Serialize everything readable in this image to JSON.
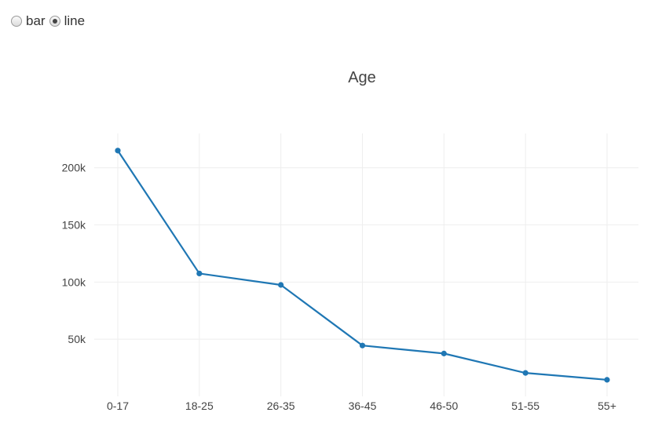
{
  "controls": {
    "options": [
      {
        "label": "bar",
        "checked": false
      },
      {
        "label": "line",
        "checked": true
      }
    ]
  },
  "chart_data": {
    "type": "line",
    "title": "Age",
    "categories": [
      "0-17",
      "18-25",
      "26-35",
      "36-45",
      "46-50",
      "51-55",
      "55+"
    ],
    "series": [
      {
        "values": [
          215000,
          107500,
          97500,
          44500,
          37500,
          20500,
          14500
        ]
      }
    ],
    "yticks": [
      50000,
      100000,
      150000,
      200000
    ],
    "ytick_labels": [
      "50k",
      "100k",
      "150k",
      "200k"
    ],
    "ylim": [
      0,
      230000
    ],
    "grid": true,
    "line_color": "#1f77b4",
    "grid_color": "#eeeeee"
  }
}
